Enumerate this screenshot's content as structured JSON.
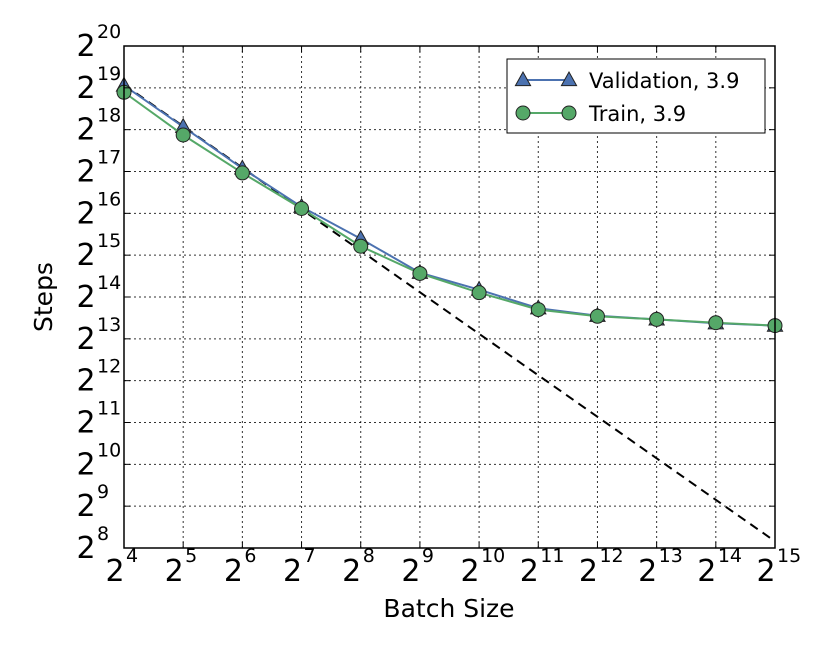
{
  "chart_data": {
    "type": "line",
    "xlabel": "Batch Size",
    "ylabel": "Steps",
    "xscale": "log2",
    "yscale": "log2",
    "xlim": [
      16,
      32768
    ],
    "ylim": [
      256,
      1048576
    ],
    "x_ticks": [
      {
        "base": "2",
        "exp": "4",
        "value": 16
      },
      {
        "base": "2",
        "exp": "5",
        "value": 32
      },
      {
        "base": "2",
        "exp": "6",
        "value": 64
      },
      {
        "base": "2",
        "exp": "7",
        "value": 128
      },
      {
        "base": "2",
        "exp": "8",
        "value": 256
      },
      {
        "base": "2",
        "exp": "9",
        "value": 512
      },
      {
        "base": "2",
        "exp": "10",
        "value": 1024
      },
      {
        "base": "2",
        "exp": "11",
        "value": 2048
      },
      {
        "base": "2",
        "exp": "12",
        "value": 4096
      },
      {
        "base": "2",
        "exp": "13",
        "value": 8192
      },
      {
        "base": "2",
        "exp": "14",
        "value": 16384
      },
      {
        "base": "2",
        "exp": "15",
        "value": 32768
      }
    ],
    "y_ticks": [
      {
        "base": "2",
        "exp": "8",
        "value": 256
      },
      {
        "base": "2",
        "exp": "9",
        "value": 512
      },
      {
        "base": "2",
        "exp": "10",
        "value": 1024
      },
      {
        "base": "2",
        "exp": "11",
        "value": 2048
      },
      {
        "base": "2",
        "exp": "12",
        "value": 4096
      },
      {
        "base": "2",
        "exp": "13",
        "value": 8192
      },
      {
        "base": "2",
        "exp": "14",
        "value": 16384
      },
      {
        "base": "2",
        "exp": "15",
        "value": 32768
      },
      {
        "base": "2",
        "exp": "16",
        "value": 65536
      },
      {
        "base": "2",
        "exp": "17",
        "value": 131072
      },
      {
        "base": "2",
        "exp": "18",
        "value": 262144
      },
      {
        "base": "2",
        "exp": "19",
        "value": 524288
      },
      {
        "base": "2",
        "exp": "20",
        "value": 1048576
      }
    ],
    "x": [
      16,
      32,
      64,
      128,
      256,
      512,
      1024,
      2048,
      4096,
      8192,
      16384,
      32768
    ],
    "series": [
      {
        "name": "Validation, 3.9",
        "color": "#4c72b0",
        "marker": "triangle",
        "values": [
          545000,
          275000,
          138000,
          73000,
          43000,
          24500,
          18500,
          13600,
          12000,
          11300,
          10600,
          10200
        ]
      },
      {
        "name": "Train, 3.9",
        "color": "#55a868",
        "marker": "circle",
        "values": [
          487000,
          240000,
          128000,
          71000,
          38000,
          24200,
          17600,
          13300,
          11900,
          11300,
          10700,
          10200
        ]
      }
    ],
    "reference_line": {
      "style": "dashed",
      "color": "#000000",
      "x": [
        16,
        32768
      ],
      "values": [
        552000,
        286
      ]
    },
    "grid": true,
    "legend_position": "top-right"
  }
}
